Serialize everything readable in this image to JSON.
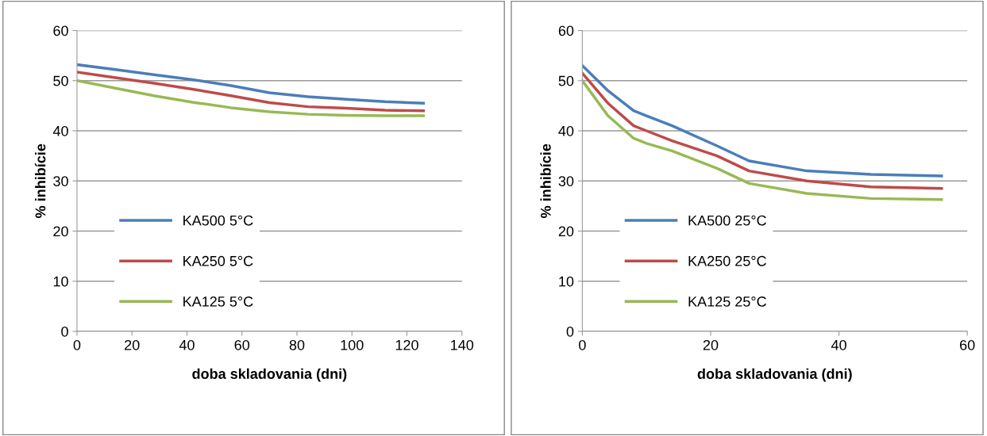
{
  "chart_data": [
    {
      "type": "line",
      "xlabel": "doba skladovania (dni)",
      "ylabel": "% inhibície",
      "xlim": [
        0,
        140
      ],
      "xticks": [
        0,
        20,
        40,
        60,
        80,
        100,
        120,
        140
      ],
      "ylim": [
        0,
        60
      ],
      "yticks": [
        0,
        10,
        20,
        30,
        40,
        50,
        60
      ],
      "grid": "y",
      "legend": "bottom left",
      "marker": "none",
      "line_style": "solid",
      "x": [
        0,
        14,
        28,
        42,
        56,
        70,
        84,
        98,
        112,
        126
      ],
      "series": [
        {
          "name": "KA500 5°C",
          "color": "#4a7ebb",
          "values": [
            53.2,
            52.2,
            51.2,
            50.2,
            49,
            47.6,
            46.8,
            46.3,
            45.8,
            45.5
          ]
        },
        {
          "name": "KA250 5°C",
          "color": "#be4b48",
          "values": [
            51.7,
            50.6,
            49.5,
            48.3,
            47,
            45.6,
            44.8,
            44.5,
            44.1,
            44
          ]
        },
        {
          "name": "KA125 5°C",
          "color": "#98b954",
          "values": [
            50,
            48.5,
            47,
            45.7,
            44.6,
            43.8,
            43.3,
            43.1,
            43,
            43
          ]
        }
      ]
    },
    {
      "type": "line",
      "xlabel": "doba skladovania (dni)",
      "ylabel": "% inhibície",
      "xlim": [
        0,
        60
      ],
      "xticks": [
        0,
        20,
        40,
        60
      ],
      "ylim": [
        0,
        60
      ],
      "yticks": [
        0,
        10,
        20,
        30,
        40,
        50,
        60
      ],
      "grid": "y",
      "legend": "bottom left",
      "marker": "none",
      "line_style": "solid",
      "x": [
        0,
        4,
        8,
        10,
        14,
        21,
        26,
        35,
        45,
        56
      ],
      "series": [
        {
          "name": "KA500 25°C",
          "color": "#4a7ebb",
          "values": [
            53,
            48,
            44,
            43,
            41,
            37,
            34,
            32,
            31.3,
            31
          ]
        },
        {
          "name": "KA250 25°C",
          "color": "#be4b48",
          "values": [
            51.5,
            45.5,
            41,
            40,
            38,
            35,
            32,
            30,
            28.8,
            28.5
          ]
        },
        {
          "name": "KA125 25°C",
          "color": "#98b954",
          "values": [
            50,
            43,
            38.5,
            37.5,
            36,
            32.5,
            29.5,
            27.5,
            26.5,
            26.3
          ]
        }
      ]
    }
  ]
}
